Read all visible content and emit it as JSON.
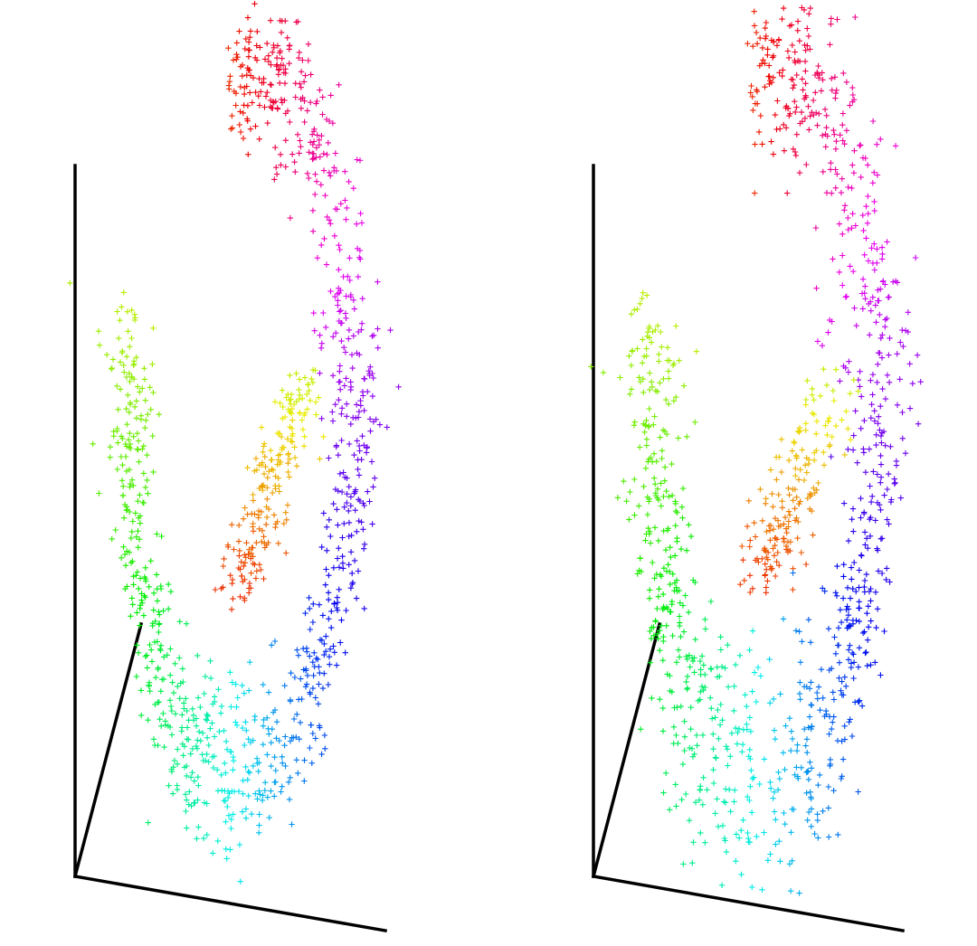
{
  "figure": {
    "background": "#ffffff",
    "axis_color": "#000000"
  },
  "chart_data": [
    {
      "type": "scatter",
      "projection": "3d",
      "marker": "+",
      "colormap": "hsv",
      "grid": false,
      "legend": "none",
      "title": "",
      "xlabel": "",
      "ylabel": "",
      "zlabel": "",
      "shape": "ring",
      "ring_sections": [
        {
          "position": "top",
          "color": "#ff1744"
        },
        {
          "position": "upper-left",
          "color": "#22ff44"
        },
        {
          "position": "left",
          "color": "#22ffcc"
        },
        {
          "position": "lower-left",
          "color": "#22ddff"
        },
        {
          "position": "bottom",
          "color": "#2233ee"
        },
        {
          "position": "lower-right",
          "color": "#9922ee"
        },
        {
          "position": "right",
          "color": "#ee22ee"
        },
        {
          "position": "inner-front-top",
          "color": "#99ff22"
        },
        {
          "position": "inner-front-middle",
          "color": "#ffee11"
        },
        {
          "position": "inner-front-lower",
          "color": "#ff8811"
        },
        {
          "position": "inner-front-bottom",
          "color": "#ff2222"
        }
      ],
      "point_count": 1200
    },
    {
      "type": "scatter",
      "projection": "3d",
      "marker": "+",
      "colormap": "hsv",
      "grid": false,
      "legend": "none",
      "title": "",
      "xlabel": "",
      "ylabel": "",
      "zlabel": "",
      "shape": "ring",
      "ring_sections": [
        {
          "position": "top",
          "color": "#ff1744"
        },
        {
          "position": "upper-left",
          "color": "#22ff44"
        },
        {
          "position": "left",
          "color": "#22ffcc"
        },
        {
          "position": "lower-left",
          "color": "#22ddff"
        },
        {
          "position": "bottom",
          "color": "#2233ee"
        },
        {
          "position": "lower-right",
          "color": "#9922ee"
        },
        {
          "position": "right",
          "color": "#ee22ee"
        },
        {
          "position": "inner-front-top",
          "color": "#99ff22"
        },
        {
          "position": "inner-front-middle",
          "color": "#ffee11"
        },
        {
          "position": "inner-front-lower",
          "color": "#ff8811"
        },
        {
          "position": "inner-front-bottom",
          "color": "#ff2222"
        }
      ],
      "point_count": 1200
    }
  ]
}
